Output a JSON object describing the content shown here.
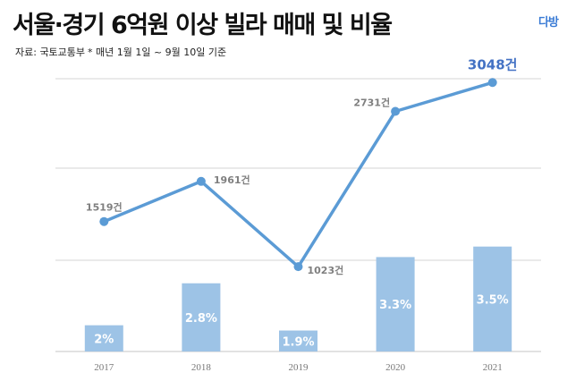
{
  "header": {
    "title": "서울·경기 6억원 이상 빌라 매매 및 비율",
    "logo": "다방",
    "source": "자료: 국토교통부",
    "note": "* 매년 1월 1일 ~ 9월 10일 기준"
  },
  "chart_data": {
    "type": "bar+line",
    "categories": [
      "2017",
      "2018",
      "2019",
      "2020",
      "2021"
    ],
    "series": [
      {
        "type": "bar",
        "values": [
          2.0,
          2.8,
          1.9,
          3.3,
          3.5
        ],
        "labels": [
          "2%",
          "2.8%",
          "1.9%",
          "3.3%",
          "3.5%"
        ],
        "color": "#9dc3e6",
        "ylim": [
          1.5,
          6.7
        ]
      },
      {
        "type": "line",
        "values": [
          1519,
          1961,
          1023,
          2731,
          3048
        ],
        "labels": [
          "1519건",
          "1961건",
          "1023건",
          "2731건",
          "3048건"
        ],
        "color": "#5b9bd5",
        "ylim": [
          90,
          3090
        ]
      }
    ],
    "highlight_color": "#4472c4",
    "grid": true
  }
}
